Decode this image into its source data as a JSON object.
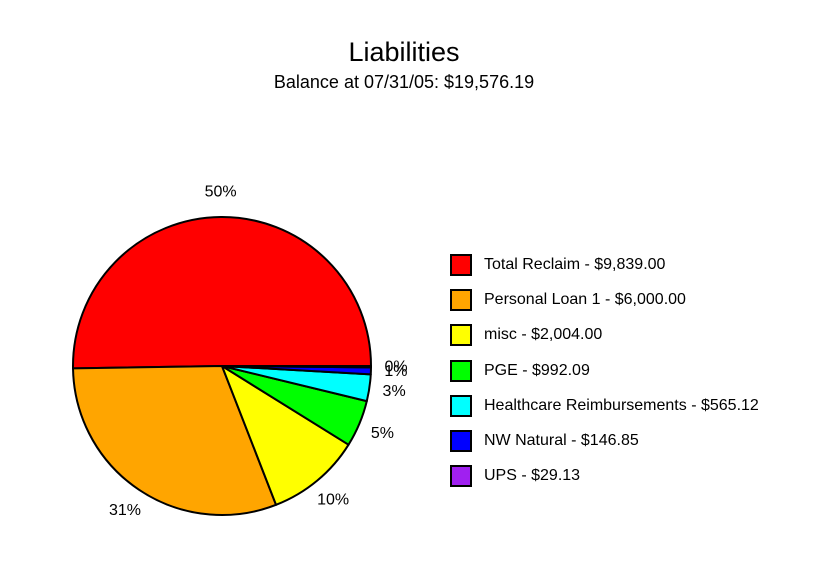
{
  "chart_data": {
    "type": "pie",
    "title": "Liabilities",
    "subtitle": "Balance at 07/31/05: $19,576.19",
    "slices": [
      {
        "label": "Total Reclaim - $9,839.00",
        "value": 9839.0,
        "percent_label": "50%",
        "color": "#ff0000"
      },
      {
        "label": "Personal Loan 1 - $6,000.00",
        "value": 6000.0,
        "percent_label": "31%",
        "color": "#ffa500"
      },
      {
        "label": "misc - $2,004.00",
        "value": 2004.0,
        "percent_label": "10%",
        "color": "#ffff00"
      },
      {
        "label": "PGE - $992.09",
        "value": 992.09,
        "percent_label": "5%",
        "color": "#00ff00"
      },
      {
        "label": "Healthcare Reimbursements - $565.12",
        "value": 565.12,
        "percent_label": "3%",
        "color": "#00ffff"
      },
      {
        "label": "NW Natural - $146.85",
        "value": 146.85,
        "percent_label": "1%",
        "color": "#0000ff"
      },
      {
        "label": "UPS - $29.13",
        "value": 29.13,
        "percent_label": "0%",
        "color": "#a020f0"
      }
    ],
    "legend_placement": "right"
  }
}
